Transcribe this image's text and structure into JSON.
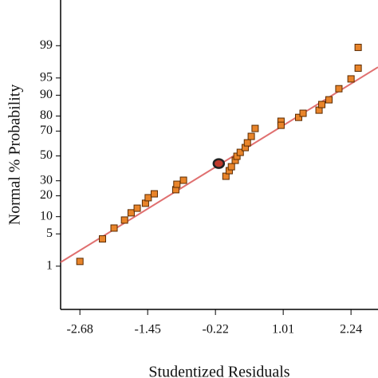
{
  "chart_data": {
    "type": "probability-plot",
    "x_label": "Studentized Residuals",
    "y_label": "Normal % Probability",
    "yscale": "probit",
    "xlim": [
      -3.03,
      2.73
    ],
    "ylim": [
      0.06,
      99.95
    ],
    "xticks": [
      -2.68,
      -1.45,
      -0.22,
      1.01,
      2.24
    ],
    "yticks": [
      1,
      5,
      10,
      20,
      30,
      50,
      70,
      80,
      90,
      95,
      99
    ],
    "series": [
      {
        "color": "#e8842a",
        "x": [
          -2.68,
          -2.27,
          -2.06,
          -1.87,
          -1.75,
          -1.64,
          -1.49,
          -1.44,
          -1.33,
          -0.94,
          -0.92,
          -0.8,
          -0.03,
          0.03,
          0.07,
          0.14,
          0.17,
          0.23,
          0.32,
          0.36,
          0.43,
          0.5,
          0.97,
          0.97,
          1.29,
          1.37,
          1.66,
          1.71,
          1.84,
          2.02,
          2.24,
          2.37,
          2.37
        ],
        "values": [
          1.3,
          4.0,
          6.4,
          8.8,
          11.5,
          13.5,
          15.9,
          18.9,
          21.2,
          23.8,
          27.5,
          30.4,
          33.4,
          37.8,
          41.0,
          46.3,
          49.7,
          53.0,
          57.0,
          60.9,
          66.0,
          71.9,
          76.8,
          74.1,
          79.2,
          81.6,
          83.3,
          86.1,
          88.2,
          92.2,
          94.8,
          96.8,
          98.9
        ]
      },
      {
        "color": "#c0392b",
        "x": [
          -0.16
        ],
        "values": [
          43.6
        ]
      }
    ],
    "fit_line": {
      "color": "#e07070",
      "x": [
        -3.03,
        2.73
      ],
      "values": [
        1.24,
        96.95
      ]
    }
  }
}
